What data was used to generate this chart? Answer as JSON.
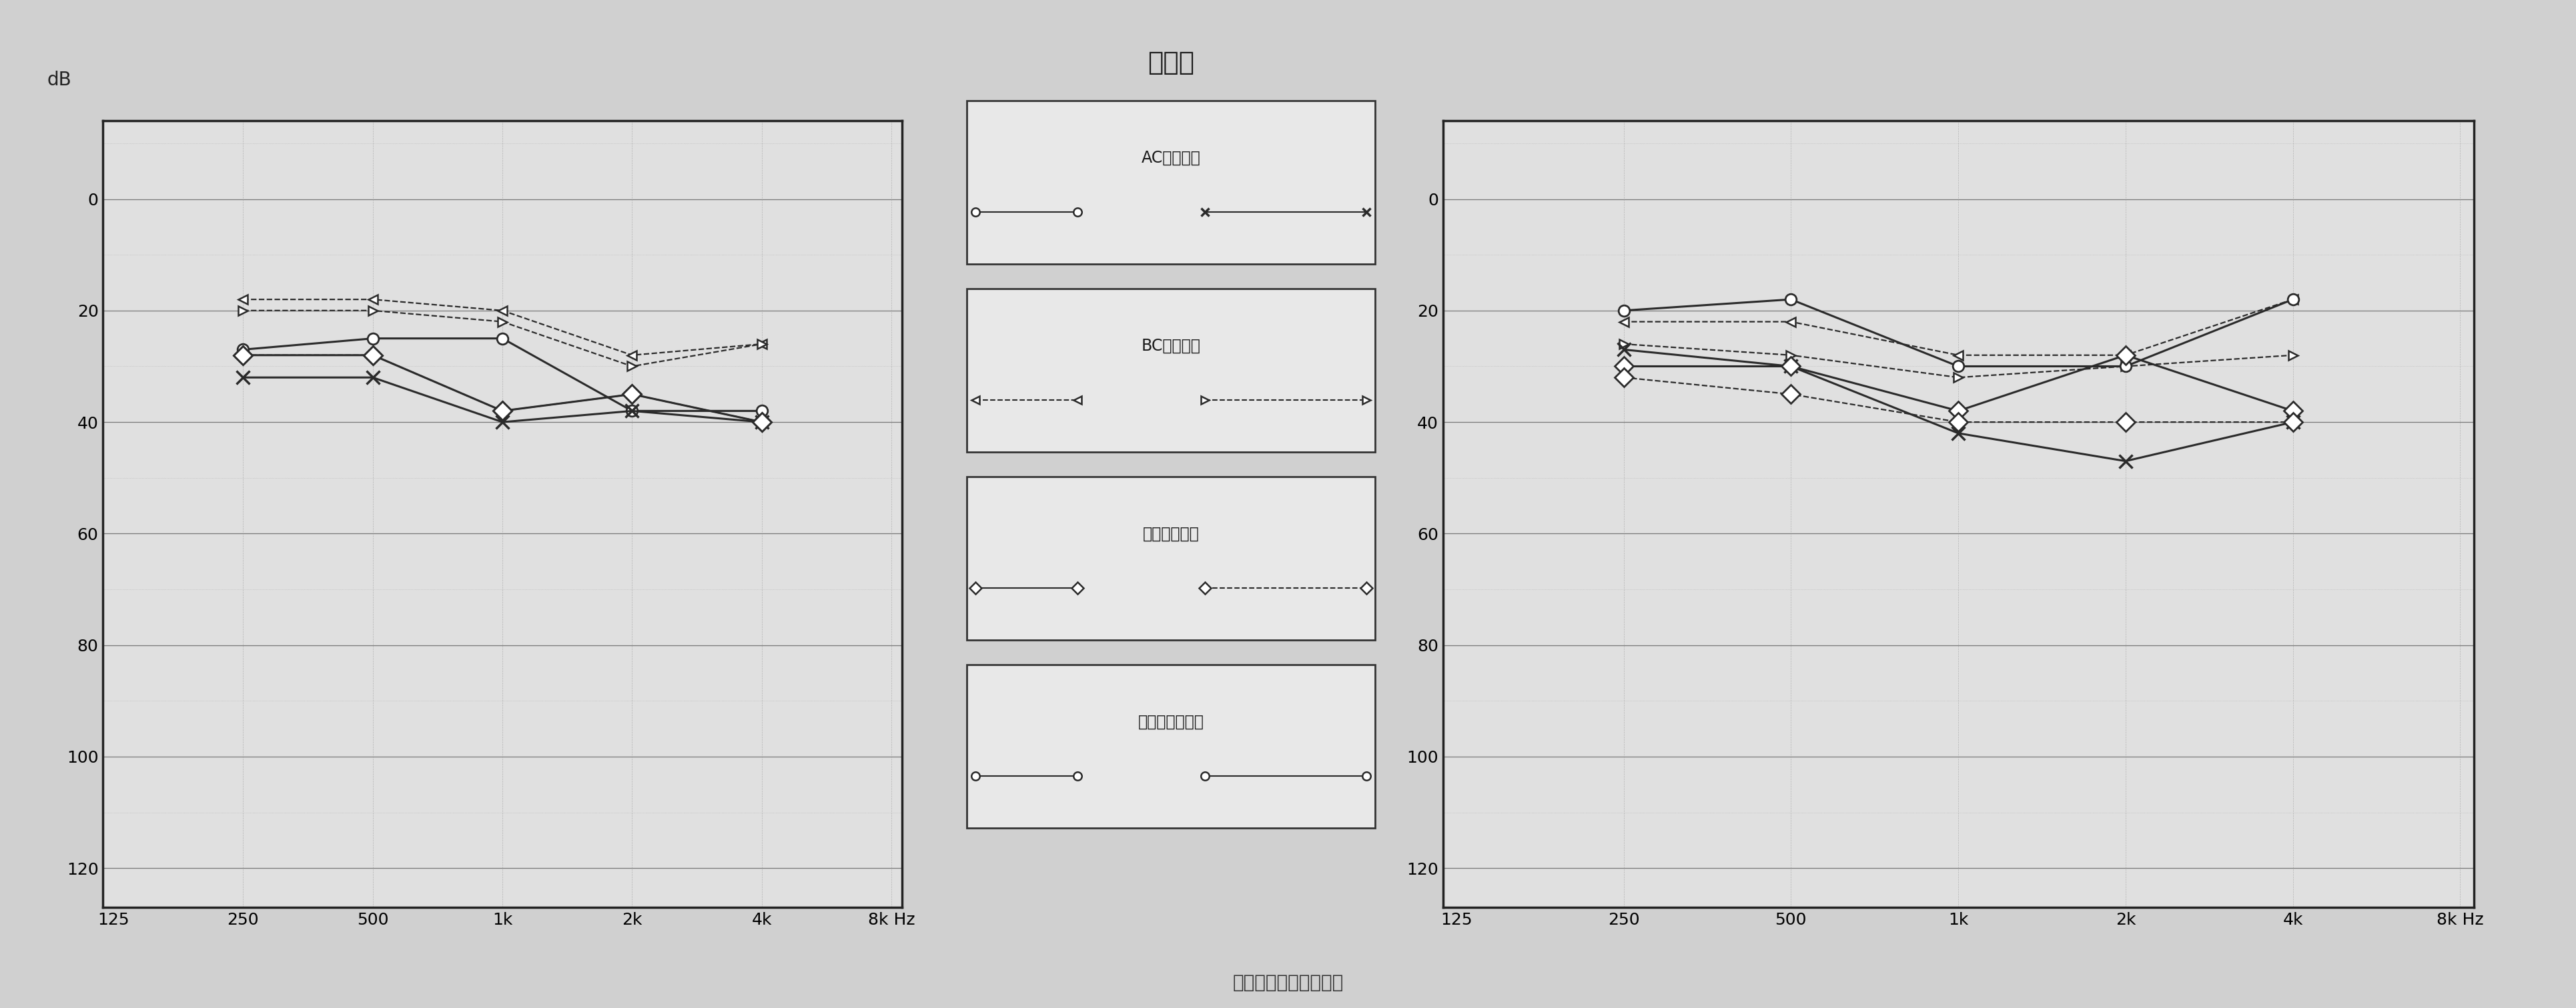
{
  "title": "听力图",
  "background_color": "#d0d0d0",
  "plot_bg_color": "#e0e0e0",
  "x_tick_freqs": [
    125,
    250,
    500,
    1000,
    2000,
    4000,
    8000
  ],
  "x_labels": [
    "125",
    "250",
    "500",
    "1k",
    "2k",
    "4k",
    "8k Hz"
  ],
  "y_major_ticks": [
    0,
    20,
    40,
    60,
    80,
    100,
    120
  ],
  "y_minor_ticks": [
    -10,
    10,
    30,
    50,
    70,
    90,
    110
  ],
  "ylim_top": -14,
  "ylim_bottom": 127,
  "chart1": {
    "freqs": [
      250,
      500,
      1000,
      2000,
      4000
    ],
    "ac_left": [
      27,
      25,
      25,
      38,
      38
    ],
    "ac_right": [
      32,
      32,
      40,
      38,
      40
    ],
    "bc_left": [
      18,
      18,
      20,
      28,
      26
    ],
    "bc_right": [
      20,
      20,
      22,
      30,
      26
    ],
    "aid_left": [
      28,
      28,
      38,
      35,
      40
    ],
    "aid_right": [
      28,
      28,
      38,
      35,
      40
    ]
  },
  "chart2": {
    "freqs": [
      250,
      500,
      1000,
      2000,
      4000
    ],
    "ac_left": [
      20,
      18,
      30,
      30,
      18
    ],
    "ac_right": [
      27,
      30,
      42,
      47,
      40
    ],
    "bc_left": [
      22,
      22,
      28,
      28,
      18
    ],
    "bc_right": [
      26,
      28,
      32,
      30,
      28
    ],
    "aid_left": [
      30,
      30,
      38,
      28,
      38
    ],
    "aid_right": [
      32,
      35,
      40,
      40,
      40
    ]
  },
  "legend_items": [
    {
      "label": "AC气导听阈",
      "left_marker": "o",
      "left_ls": "-",
      "right_marker": "x",
      "right_ls": "-"
    },
    {
      "label": "BC骨导听阈",
      "left_marker": "<",
      "left_ls": "--",
      "right_marker": ">",
      "right_ls": "--"
    },
    {
      "label": "助听后反应阈",
      "left_marker": "D",
      "left_ls": "-",
      "right_marker": "D",
      "right_ls": "--"
    },
    {
      "label": "人工耳蜗反应阈",
      "left_marker": "o",
      "left_ls": "-",
      "right_marker": "o",
      "right_ls": "-"
    }
  ],
  "line_color": "#2a2a2a",
  "spine_color": "#222222",
  "grid_major_color": "#555555",
  "grid_minor_color": "#999999",
  "tick_fontsize": 18,
  "ylabel_text": "dB",
  "bottom_text": "助听后反应阈使用效果"
}
